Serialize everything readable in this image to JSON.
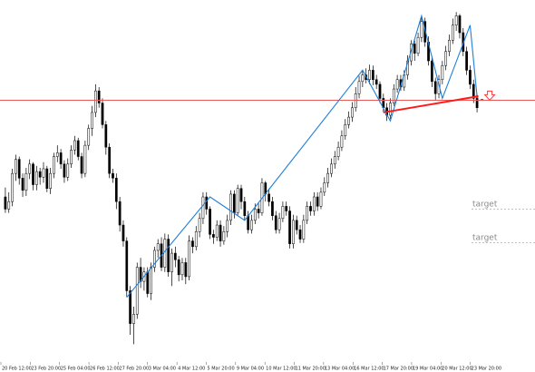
{
  "chart_data": {
    "type": "candlestick",
    "title": "",
    "xlabel": "",
    "ylabel": "",
    "grid": false,
    "x_tick_labels": [
      "20 Feb 12:00",
      "23 Feb 20:00",
      "25 Feb 04:00",
      "26 Feb 12:00",
      "27 Feb 20:00",
      "3 Mar 04:00",
      "4 Mar 12:00",
      "5 Mar 20:00",
      "9 Mar 04:00",
      "10 Mar 12:00",
      "11 Mar 20:00",
      "13 Mar 04:00",
      "16 Mar 12:00",
      "17 Mar 20:00",
      "19 Mar 04:00",
      "20 Mar 12:00",
      "23 Mar 20:00"
    ],
    "candles": [
      [
        0,
        275,
        262,
        285,
        258
      ],
      [
        1,
        262,
        270,
        280,
        258
      ],
      [
        2,
        270,
        300,
        305,
        265
      ],
      [
        3,
        300,
        315,
        320,
        292
      ],
      [
        4,
        315,
        295,
        318,
        288
      ],
      [
        5,
        295,
        282,
        300,
        275
      ],
      [
        6,
        282,
        300,
        306,
        276
      ],
      [
        7,
        300,
        310,
        315,
        294
      ],
      [
        8,
        310,
        288,
        312,
        282
      ],
      [
        9,
        288,
        302,
        308,
        282
      ],
      [
        10,
        302,
        296,
        306,
        288
      ],
      [
        11,
        296,
        305,
        312,
        290
      ],
      [
        12,
        305,
        284,
        308,
        280
      ],
      [
        13,
        284,
        300,
        306,
        278
      ],
      [
        14,
        300,
        318,
        322,
        295
      ],
      [
        15,
        318,
        322,
        330,
        312
      ],
      [
        16,
        322,
        310,
        326,
        305
      ],
      [
        17,
        310,
        296,
        314,
        290
      ],
      [
        18,
        296,
        310,
        316,
        292
      ],
      [
        19,
        310,
        325,
        330,
        306
      ],
      [
        20,
        325,
        335,
        340,
        320
      ],
      [
        21,
        335,
        318,
        338,
        314
      ],
      [
        22,
        318,
        300,
        322,
        295
      ],
      [
        23,
        300,
        330,
        335,
        296
      ],
      [
        24,
        330,
        348,
        352,
        325
      ],
      [
        25,
        348,
        365,
        372,
        340
      ],
      [
        26,
        365,
        388,
        395,
        360
      ],
      [
        27,
        388,
        375,
        392,
        370
      ],
      [
        28,
        375,
        352,
        380,
        348
      ],
      [
        29,
        352,
        328,
        356,
        320
      ],
      [
        30,
        328,
        300,
        332,
        295
      ],
      [
        31,
        300,
        295,
        305,
        290
      ],
      [
        32,
        295,
        270,
        300,
        262
      ],
      [
        33,
        270,
        245,
        275,
        238
      ],
      [
        34,
        245,
        228,
        250,
        222
      ],
      [
        35,
        228,
        175,
        232,
        168
      ],
      [
        36,
        175,
        140,
        180,
        128
      ],
      [
        37,
        140,
        150,
        158,
        118
      ],
      [
        38,
        150,
        200,
        205,
        145
      ],
      [
        39,
        200,
        185,
        210,
        178
      ],
      [
        40,
        185,
        195,
        200,
        175
      ],
      [
        41,
        195,
        172,
        200,
        168
      ],
      [
        42,
        172,
        200,
        205,
        165
      ],
      [
        43,
        200,
        218,
        222,
        195
      ],
      [
        44,
        218,
        225,
        230,
        210
      ],
      [
        45,
        225,
        200,
        232,
        196
      ],
      [
        46,
        200,
        230,
        236,
        195
      ],
      [
        47,
        230,
        195,
        235,
        190
      ],
      [
        48,
        195,
        215,
        220,
        180
      ],
      [
        49,
        215,
        208,
        222,
        200
      ],
      [
        50,
        208,
        192,
        212,
        185
      ],
      [
        51,
        192,
        205,
        210,
        186
      ],
      [
        52,
        205,
        190,
        210,
        182
      ],
      [
        53,
        190,
        228,
        234,
        186
      ],
      [
        54,
        228,
        222,
        232,
        215
      ],
      [
        55,
        222,
        238,
        244,
        218
      ],
      [
        56,
        238,
        252,
        258,
        232
      ],
      [
        57,
        252,
        275,
        280,
        246
      ],
      [
        58,
        275,
        262,
        280,
        256
      ],
      [
        59,
        262,
        235,
        265,
        230
      ],
      [
        60,
        235,
        232,
        240,
        225
      ],
      [
        61,
        232,
        245,
        250,
        228
      ],
      [
        62,
        245,
        228,
        250,
        222
      ],
      [
        63,
        228,
        238,
        244,
        224
      ],
      [
        64,
        238,
        250,
        256,
        232
      ],
      [
        65,
        250,
        278,
        282,
        245
      ],
      [
        66,
        278,
        258,
        282,
        252
      ],
      [
        67,
        258,
        284,
        288,
        255
      ],
      [
        68,
        284,
        270,
        288,
        262
      ],
      [
        69,
        270,
        255,
        275,
        250
      ],
      [
        70,
        255,
        240,
        260,
        236
      ],
      [
        71,
        240,
        250,
        256,
        236
      ],
      [
        72,
        250,
        262,
        268,
        246
      ],
      [
        73,
        262,
        258,
        268,
        252
      ],
      [
        74,
        258,
        290,
        295,
        255
      ],
      [
        75,
        290,
        278,
        292,
        270
      ],
      [
        76,
        278,
        270,
        284,
        265
      ],
      [
        77,
        270,
        255,
        275,
        250
      ],
      [
        78,
        255,
        240,
        260,
        236
      ],
      [
        79,
        240,
        252,
        258,
        236
      ],
      [
        80,
        252,
        265,
        270,
        248
      ],
      [
        81,
        265,
        260,
        270,
        255
      ],
      [
        82,
        260,
        225,
        265,
        220
      ],
      [
        83,
        225,
        250,
        256,
        220
      ],
      [
        84,
        250,
        240,
        255,
        235
      ],
      [
        85,
        240,
        230,
        245,
        226
      ],
      [
        86,
        230,
        250,
        256,
        226
      ],
      [
        87,
        250,
        265,
        270,
        246
      ],
      [
        88,
        265,
        260,
        270,
        255
      ],
      [
        89,
        260,
        275,
        280,
        255
      ],
      [
        90,
        275,
        265,
        280,
        260
      ],
      [
        91,
        265,
        280,
        285,
        262
      ],
      [
        92,
        280,
        290,
        296,
        276
      ],
      [
        93,
        290,
        300,
        306,
        285
      ],
      [
        94,
        300,
        310,
        316,
        296
      ],
      [
        95,
        310,
        318,
        324,
        305
      ],
      [
        96,
        318,
        328,
        334,
        314
      ],
      [
        97,
        328,
        340,
        346,
        324
      ],
      [
        98,
        340,
        352,
        358,
        336
      ],
      [
        99,
        352,
        360,
        366,
        348
      ],
      [
        100,
        360,
        370,
        376,
        355
      ],
      [
        101,
        370,
        385,
        392,
        366
      ],
      [
        102,
        385,
        398,
        404,
        380
      ],
      [
        103,
        398,
        405,
        410,
        392
      ],
      [
        104,
        405,
        400,
        412,
        396
      ],
      [
        105,
        400,
        410,
        416,
        395
      ],
      [
        106,
        410,
        400,
        415,
        394
      ],
      [
        107,
        400,
        395,
        405,
        390
      ],
      [
        108,
        395,
        380,
        398,
        375
      ],
      [
        109,
        380,
        370,
        385,
        365
      ],
      [
        110,
        370,
        362,
        375,
        356
      ],
      [
        111,
        362,
        375,
        380,
        358
      ],
      [
        112,
        375,
        390,
        395,
        372
      ],
      [
        113,
        390,
        400,
        405,
        386
      ],
      [
        114,
        400,
        392,
        405,
        388
      ],
      [
        115,
        392,
        405,
        410,
        388
      ],
      [
        116,
        405,
        420,
        426,
        400
      ],
      [
        117,
        420,
        438,
        442,
        415
      ],
      [
        118,
        438,
        428,
        442,
        420
      ],
      [
        119,
        428,
        445,
        450,
        425
      ],
      [
        120,
        445,
        462,
        468,
        440
      ],
      [
        121,
        462,
        440,
        466,
        435
      ],
      [
        122,
        440,
        420,
        446,
        415
      ],
      [
        123,
        420,
        398,
        425,
        392
      ],
      [
        124,
        398,
        385,
        402,
        378
      ],
      [
        125,
        385,
        400,
        405,
        380
      ],
      [
        126,
        400,
        415,
        420,
        395
      ],
      [
        127,
        415,
        430,
        436,
        410
      ],
      [
        128,
        430,
        442,
        448,
        425
      ],
      [
        129,
        442,
        458,
        465,
        438
      ],
      [
        130,
        458,
        468,
        472,
        452
      ],
      [
        131,
        468,
        450,
        470,
        444
      ],
      [
        132,
        450,
        430,
        455,
        425
      ],
      [
        133,
        430,
        410,
        435,
        405
      ],
      [
        134,
        410,
        395,
        415,
        390
      ],
      [
        135,
        395,
        380,
        400,
        375
      ],
      [
        136,
        380,
        370,
        385,
        365
      ]
    ],
    "overlays": {
      "horizontal_line": 378,
      "zigzag": [
        [
          35,
          168
        ],
        [
          59,
          275
        ],
        [
          69,
          250
        ],
        [
          103,
          410
        ],
        [
          111,
          356
        ],
        [
          120,
          468
        ],
        [
          126,
          380
        ],
        [
          134,
          458
        ],
        [
          136,
          382
        ]
      ],
      "pattern_line": [
        [
          109,
          365
        ],
        [
          136,
          382
        ]
      ],
      "arrow": "down",
      "targets": [
        {
          "label": "target",
          "price": 262
        },
        {
          "label": "target",
          "price": 226
        }
      ]
    },
    "ylim": [
      100,
      480
    ],
    "colors": {
      "bull": "#ffffff",
      "bear": "#000000",
      "outline": "#000000",
      "zigzag": "#1e7fd8",
      "pattern": "#ff1a1a",
      "hline": "#e85a5a",
      "arrow": "#ff3b3b",
      "target_line": "#9a9a9a"
    }
  }
}
